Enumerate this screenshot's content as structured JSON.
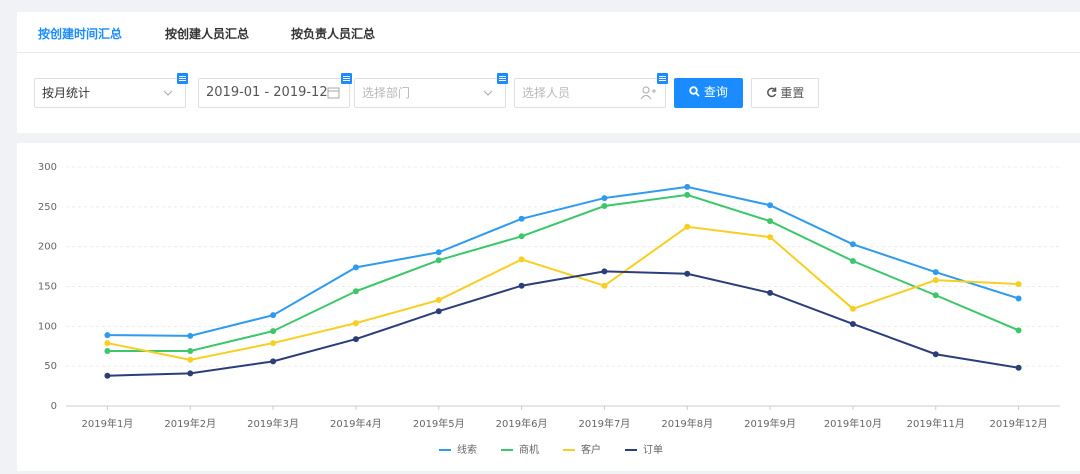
{
  "tabs": [
    "按创建时间汇总",
    "按创建人员汇总",
    "按负责人员汇总"
  ],
  "active_tab": 0,
  "filters": {
    "period": "按月统计",
    "date_range": "2019-01 - 2019-12",
    "department_placeholder": "选择部门",
    "person_placeholder": "选择人员",
    "search_button": "查询",
    "reset_button": "重置"
  },
  "chart_data": {
    "type": "line",
    "categories": [
      "2019年1月",
      "2019年2月",
      "2019年3月",
      "2019年4月",
      "2019年5月",
      "2019年6月",
      "2019年7月",
      "2019年8月",
      "2019年9月",
      "2019年10月",
      "2019年11月",
      "2019年12月"
    ],
    "series": [
      {
        "name": "线索",
        "color": "#2f9bf0",
        "values": [
          89,
          88,
          114,
          174,
          193,
          235,
          261,
          275,
          252,
          203,
          168,
          135
        ]
      },
      {
        "name": "商机",
        "color": "#3cc76b",
        "values": [
          69,
          69,
          94,
          144,
          183,
          213,
          251,
          265,
          232,
          182,
          139,
          95
        ]
      },
      {
        "name": "客户",
        "color": "#f7cf22",
        "values": [
          79,
          58,
          79,
          104,
          133,
          184,
          151,
          225,
          212,
          122,
          158,
          153
        ]
      },
      {
        "name": "订单",
        "color": "#2c3e7a",
        "values": [
          38,
          41,
          56,
          84,
          119,
          151,
          169,
          166,
          142,
          103,
          65,
          48
        ]
      }
    ],
    "ylim": [
      0,
      300
    ],
    "yticks": [
      0,
      50,
      100,
      150,
      200,
      250,
      300
    ],
    "grid": true,
    "legend": "bottom"
  }
}
